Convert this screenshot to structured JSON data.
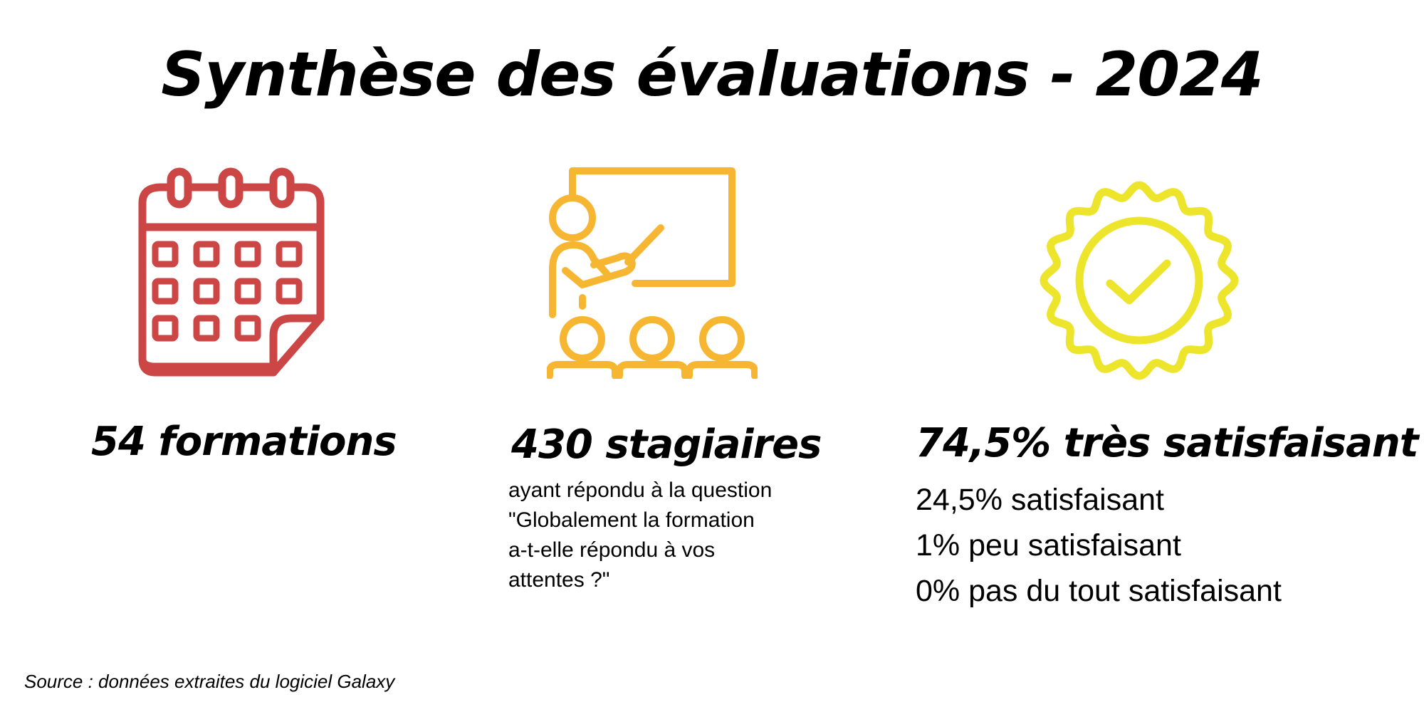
{
  "title": "Synthèse des évaluations - 2024",
  "colors": {
    "calendar": "#cc4646",
    "teacher": "#f7b631",
    "badge": "#ede42c",
    "text": "#000000"
  },
  "icons": [
    "calendar-icon",
    "teacher-classroom-icon",
    "quality-badge-check-icon"
  ],
  "stats": {
    "formations": {
      "heading": "54 formations"
    },
    "stagiaires": {
      "heading": "430 stagiaires",
      "description_lines": [
        "ayant répondu à la question",
        "\"Globalement la formation",
        "a-t-elle répondu à vos",
        "attentes ?\""
      ]
    },
    "satisfaction": {
      "heading": "74,5% très satisfaisant",
      "breakdown": [
        "24,5% satisfaisant",
        "1% peu satisfaisant",
        "0% pas du tout satisfaisant"
      ]
    }
  },
  "source": "Source : données extraites du logiciel Galaxy"
}
